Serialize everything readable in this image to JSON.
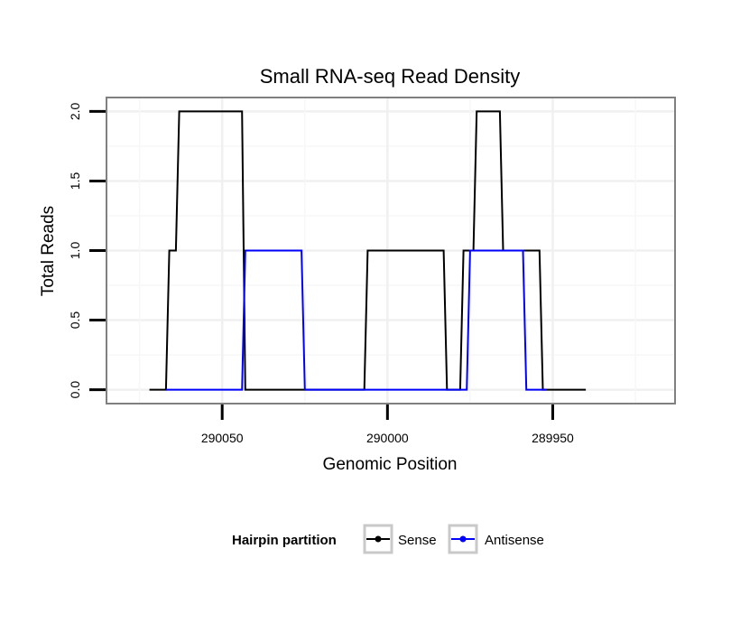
{
  "chart_data": {
    "type": "line",
    "title": "Small RNA-seq Read Density",
    "xlabel": "Genomic Position",
    "ylabel": "Total Reads",
    "x_reversed": true,
    "xlim": [
      290085,
      289913
    ],
    "ylim": [
      -0.1,
      2.1
    ],
    "x_ticks": [
      290050,
      290000,
      289950
    ],
    "x_tick_labels": [
      "290050",
      "290000",
      "289950"
    ],
    "y_ticks": [
      0.0,
      0.5,
      1.0,
      1.5,
      2.0
    ],
    "y_tick_labels": [
      "0.0",
      "0.5",
      "1.0",
      "1.5",
      "2.0"
    ],
    "grid": true,
    "legend": {
      "title": "Hairpin partition",
      "placement": "bottom",
      "entries": [
        "Sense",
        "Antisense"
      ]
    },
    "series": [
      {
        "name": "Sense",
        "color": "#000000",
        "x": [
          290072,
          290067,
          290066,
          290064,
          290063,
          290044,
          290043,
          290007,
          290006,
          289983,
          289982,
          289978,
          289977,
          289974,
          289973,
          289966,
          289965,
          289954,
          289953,
          289940
        ],
        "y": [
          0,
          0,
          1,
          1,
          2,
          2,
          0,
          0,
          1,
          1,
          0,
          0,
          1,
          1,
          2,
          2,
          1,
          1,
          0,
          0
        ]
      },
      {
        "name": "Antisense",
        "color": "#0000ff",
        "x": [
          290067,
          290044,
          290043,
          290026,
          290025,
          289976,
          289975,
          289959,
          289958,
          289952
        ],
        "y": [
          0,
          0,
          1,
          1,
          0,
          0,
          1,
          1,
          0,
          0
        ]
      }
    ]
  }
}
